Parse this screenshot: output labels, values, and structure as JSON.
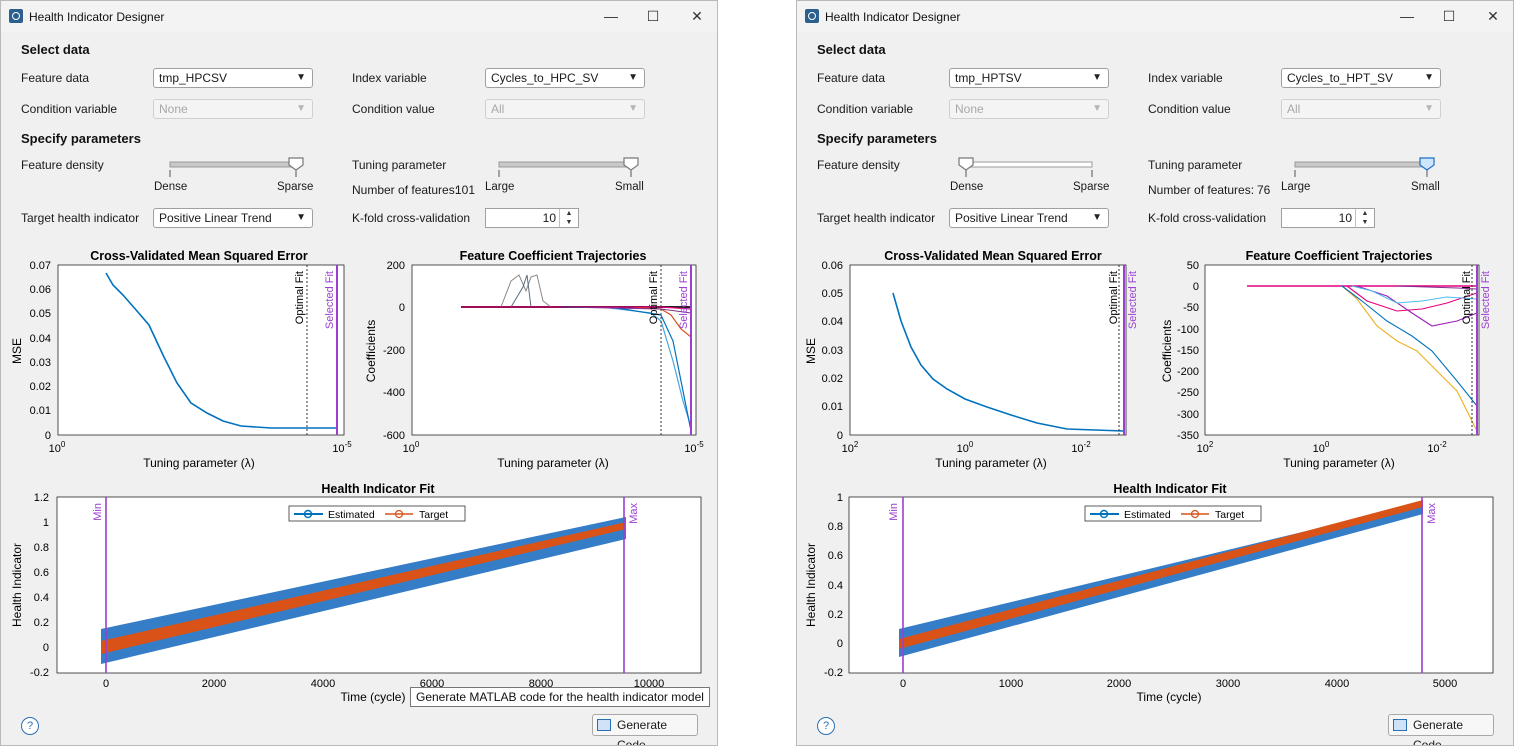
{
  "windows": [
    {
      "title": "Health Indicator Designer",
      "select_heading": "Select data",
      "feature_data_label": "Feature data",
      "feature_data_value": "tmp_HPCSV",
      "index_variable_label": "Index variable",
      "index_variable_value": "Cycles_to_HPC_SV",
      "condition_variable_label": "Condition variable",
      "condition_variable_value": "None",
      "condition_value_label": "Condition value",
      "condition_value_value": "All",
      "specify_heading": "Specify parameters",
      "feature_density_label": "Feature density",
      "density_left": "Dense",
      "density_right": "Sparse",
      "density_level": 1.0,
      "tuning_label": "Tuning parameter",
      "tuning_left": "Large",
      "tuning_right": "Small",
      "tuning_level": 1.0,
      "num_features_label": "Number of features:",
      "num_features_value": "101",
      "target_label": "Target health indicator",
      "target_value": "Positive Linear Trend",
      "kfold_label": "K-fold cross-validation",
      "kfold_value": "10",
      "help_label": "?",
      "generate_label": "Generate Code",
      "tooltip": "Generate MATLAB code for the health indicator model",
      "mse_chart": {
        "title": "Cross-Validated Mean Squared Error",
        "xlabel": "Tuning  parameter  (λ)",
        "ylabel": "MSE",
        "yticks": [
          "0.07",
          "0.06",
          "0.05",
          "0.04",
          "0.03",
          "0.02",
          "0.01",
          "0"
        ],
        "xtick_left": "10^0",
        "xtick_right": "10^-5",
        "optimal_label": "Optimal Fit",
        "selected_label": "Selected Fit"
      },
      "coef_chart": {
        "title": "Feature Coefficient Trajectories",
        "xlabel": "Tuning  parameter  (λ)",
        "ylabel": "Coefficients",
        "yticks": [
          "200",
          "0",
          "-200",
          "-400",
          "-600"
        ],
        "xtick_left": "10^0",
        "xtick_right": "10^-5",
        "optimal_label": "Optimal Fit",
        "selected_label": "Selected Fit"
      },
      "fit_chart": {
        "title": "Health Indicator Fit",
        "xlabel": "Time (cycle)",
        "ylabel": "Health Indicator",
        "yticks": [
          "1.2",
          "1",
          "0.8",
          "0.6",
          "0.4",
          "0.2",
          "0",
          "-0.2"
        ],
        "xticks": [
          "0",
          "2000",
          "4000",
          "6000",
          "8000",
          "10000"
        ],
        "legend_estimated": "Estimated",
        "legend_target": "Target",
        "min_label": "Min",
        "max_label": "Max"
      }
    },
    {
      "title": "Health Indicator Designer",
      "select_heading": "Select data",
      "feature_data_label": "Feature data",
      "feature_data_value": "tmp_HPTSV",
      "index_variable_label": "Index variable",
      "index_variable_value": "Cycles_to_HPT_SV",
      "condition_variable_label": "Condition variable",
      "condition_variable_value": "None",
      "condition_value_label": "Condition value",
      "condition_value_value": "All",
      "specify_heading": "Specify parameters",
      "feature_density_label": "Feature density",
      "density_left": "Dense",
      "density_right": "Sparse",
      "density_level": 0.0,
      "tuning_label": "Tuning parameter",
      "tuning_left": "Large",
      "tuning_right": "Small",
      "tuning_level": 1.0,
      "num_features_label": "Number of features:",
      "num_features_value": "76",
      "target_label": "Target health indicator",
      "target_value": "Positive Linear Trend",
      "kfold_label": "K-fold cross-validation",
      "kfold_value": "10",
      "help_label": "?",
      "generate_label": "Generate Code",
      "mse_chart": {
        "title": "Cross-Validated Mean Squared Error",
        "xlabel": "Tuning  parameter  (λ)",
        "ylabel": "MSE",
        "yticks": [
          "0.06",
          "0.05",
          "0.04",
          "0.03",
          "0.02",
          "0.01",
          "0"
        ],
        "xtick_left": "10^2",
        "xtick_mid": "10^0",
        "xtick_right": "10^-2",
        "optimal_label": "Optimal Fit",
        "selected_label": "Selected Fit"
      },
      "coef_chart": {
        "title": "Feature Coefficient Trajectories",
        "xlabel": "Tuning  parameter  (λ)",
        "ylabel": "Coefficients",
        "yticks": [
          "50",
          "0",
          "-50",
          "-100",
          "-150",
          "-200",
          "-250",
          "-300",
          "-350"
        ],
        "xtick_left": "10^2",
        "xtick_mid": "10^0",
        "xtick_right": "10^-2",
        "optimal_label": "Optimal Fit",
        "selected_label": "Selected Fit"
      },
      "fit_chart": {
        "title": "Health Indicator Fit",
        "xlabel": "Time (cycle)",
        "ylabel": "Health Indicator",
        "yticks": [
          "1",
          "0.8",
          "0.6",
          "0.4",
          "0.2",
          "0",
          "-0.2"
        ],
        "xticks": [
          "0",
          "1000",
          "2000",
          "3000",
          "4000",
          "5000"
        ],
        "legend_estimated": "Estimated",
        "legend_target": "Target",
        "min_label": "Min",
        "max_label": "Max"
      }
    }
  ],
  "colors": {
    "estimated": "#0072bd",
    "target": "#d95319",
    "marker_line": "#9b3fd1"
  },
  "chart_data": [
    {
      "type": "line",
      "title": "Cross-Validated Mean Squared Error",
      "xlabel": "Tuning parameter (λ)",
      "ylabel": "MSE",
      "x_scale": "log-reversed",
      "ylim": [
        0,
        0.07
      ],
      "series": [
        {
          "values_lambda": [
            0.1,
            0.05,
            0.02,
            0.01,
            0.005,
            0.002,
            0.001,
            0.0005,
            0.0001,
            1e-05
          ],
          "values": [
            0.066,
            0.058,
            0.046,
            0.03,
            0.018,
            0.009,
            0.005,
            0.0035,
            0.003,
            0.003
          ]
        }
      ]
    },
    {
      "type": "line",
      "title": "Feature Coefficient Trajectories",
      "xlabel": "Tuning parameter (λ)",
      "ylabel": "Coefficients",
      "ylim": [
        -600,
        200
      ]
    },
    {
      "type": "scatter",
      "title": "Health Indicator Fit",
      "xlabel": "Time (cycle)",
      "ylabel": "Health Indicator",
      "xlim": [
        -500,
        11000
      ],
      "ylim": [
        -0.2,
        1.2
      ],
      "series": [
        {
          "name": "Estimated",
          "x": [
            0,
            2000,
            4000,
            6000,
            8000,
            9500
          ],
          "values": [
            0.03,
            0.22,
            0.43,
            0.63,
            0.84,
            0.95
          ]
        },
        {
          "name": "Target",
          "x": [
            0,
            9500
          ],
          "values": [
            0,
            1
          ]
        }
      ]
    },
    {
      "type": "line",
      "title": "Cross-Validated Mean Squared Error",
      "xlabel": "Tuning parameter (λ)",
      "ylabel": "MSE",
      "x_scale": "log-reversed",
      "ylim": [
        0,
        0.06
      ],
      "series": [
        {
          "values_lambda": [
            4,
            2,
            1,
            0.5,
            0.2,
            0.1,
            0.05,
            0.02,
            0.01,
            0.005
          ],
          "values": [
            0.05,
            0.028,
            0.016,
            0.011,
            0.008,
            0.005,
            0.003,
            0.0015,
            0.001,
            0.0008
          ]
        }
      ]
    },
    {
      "type": "line",
      "title": "Feature Coefficient Trajectories",
      "xlabel": "Tuning parameter (λ)",
      "ylabel": "Coefficients",
      "ylim": [
        -350,
        50
      ]
    },
    {
      "type": "scatter",
      "title": "Health Indicator Fit",
      "xlabel": "Time (cycle)",
      "ylabel": "Health Indicator",
      "xlim": [
        -500,
        5500
      ],
      "ylim": [
        -0.2,
        1.0
      ],
      "series": [
        {
          "name": "Estimated",
          "x": [
            0,
            1000,
            2000,
            3000,
            4000,
            4800
          ],
          "values": [
            0.02,
            0.2,
            0.41,
            0.62,
            0.83,
            0.96
          ]
        },
        {
          "name": "Target",
          "x": [
            0,
            4800
          ],
          "values": [
            0,
            1
          ]
        }
      ]
    }
  ]
}
